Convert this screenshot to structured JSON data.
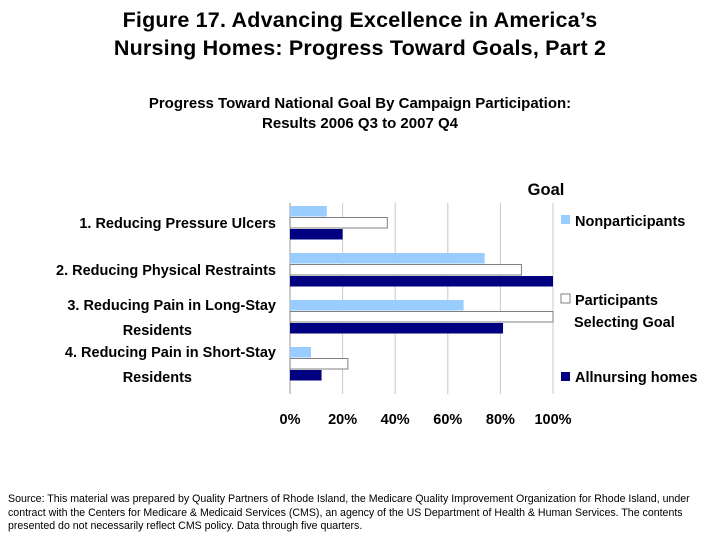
{
  "figure": {
    "title_line1": "Figure 17. Advancing Excellence in America’s",
    "title_line2": "Nursing Homes: Progress Toward Goals, Part 2"
  },
  "chart_data": {
    "type": "bar",
    "orientation": "horizontal",
    "title_line1": "Progress Toward National Goal By Campaign Participation:",
    "title_line2": "Results 2006 Q3 to 2007 Q4",
    "categories": [
      [
        "1.  Reducing Pressure Ulcers"
      ],
      [
        "2.  Reducing Physical Restraints"
      ],
      [
        "3.  Reducing Pain in Long-Stay",
        "Residents"
      ],
      [
        "4.  Reducing Pain in Short-Stay",
        "Residents"
      ]
    ],
    "series": [
      {
        "name": "Nonparticipants",
        "values": [
          14,
          74,
          66,
          8
        ],
        "color": "#99ccff"
      },
      {
        "name": [
          "Participants",
          "Selecting Goal"
        ],
        "values": [
          37,
          88,
          100,
          22
        ],
        "color": "#ffffff"
      },
      {
        "name": "Allnursing homes",
        "values": [
          20,
          100,
          81,
          12
        ],
        "color": "#000080"
      }
    ],
    "goal_label": "Goal",
    "goal_value": 100,
    "xlim": [
      0,
      100
    ],
    "xticks": [
      "0%",
      "20%",
      "40%",
      "60%",
      "80%",
      "100%"
    ],
    "grid": true,
    "legend_position": "right"
  },
  "source_text": "Source: This material was prepared by Quality Partners of Rhode Island, the Medicare Quality Improvement Organization for Rhode Island, under contract with the Centers for Medicare & Medicaid Services (CMS), an agency of the US Department of Health & Human Services. The contents presented do not necessarily reflect CMS policy. Data through five quarters."
}
